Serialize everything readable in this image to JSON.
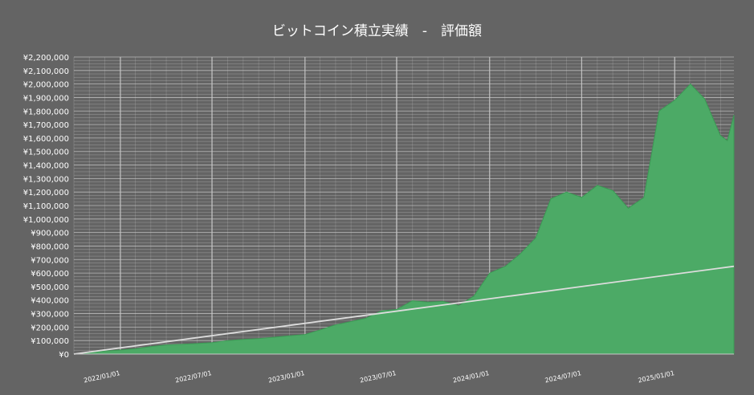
{
  "chart_data": {
    "type": "area",
    "title": "ビットコイン積立実績　-　評価額",
    "xlabel": "",
    "ylabel": "",
    "x_range": [
      "2021-10-01",
      "2025-04-28"
    ],
    "ylim": [
      0,
      2200000
    ],
    "y_tick_step": 100000,
    "y_tick_labels": [
      "¥0",
      "¥100,000",
      "¥200,000",
      "¥300,000",
      "¥400,000",
      "¥500,000",
      "¥600,000",
      "¥700,000",
      "¥800,000",
      "¥900,000",
      "¥1,000,000",
      "¥1,100,000",
      "¥1,200,000",
      "¥1,300,000",
      "¥1,400,000",
      "¥1,500,000",
      "¥1,600,000",
      "¥1,700,000",
      "¥1,800,000",
      "¥1,900,000",
      "¥2,000,000",
      "¥2,100,000",
      "¥2,200,000"
    ],
    "x_ticks": [
      {
        "date": "2022-01-01",
        "label": "2022/01/01"
      },
      {
        "date": "2022-07-01",
        "label": "2022/07/01"
      },
      {
        "date": "2023-01-01",
        "label": "2023/01/01"
      },
      {
        "date": "2023-07-01",
        "label": "2023/07/01"
      },
      {
        "date": "2024-01-01",
        "label": "2024/01/01"
      },
      {
        "date": "2024-07-01",
        "label": "2024/07/01"
      },
      {
        "date": "2025-01-01",
        "label": "2025/01/01"
      }
    ],
    "grid": true,
    "legend": "none",
    "colors": {
      "background": "#646464",
      "area": "#4caa66",
      "area_edge": "#3c9a55",
      "invested_line": "#dcdcdc",
      "grid": "#c8c8c8",
      "text": "#ffffff"
    },
    "series": [
      {
        "kind": "area",
        "points": [
          [
            "2021-10-01",
            0
          ],
          [
            "2021-11-01",
            12000
          ],
          [
            "2021-12-01",
            22000
          ],
          [
            "2022-01-01",
            30000
          ],
          [
            "2022-02-01",
            40000
          ],
          [
            "2022-03-01",
            55000
          ],
          [
            "2022-04-01",
            68000
          ],
          [
            "2022-05-01",
            72000
          ],
          [
            "2022-06-01",
            78000
          ],
          [
            "2022-07-01",
            85000
          ],
          [
            "2022-08-01",
            100000
          ],
          [
            "2022-09-01",
            108000
          ],
          [
            "2022-10-01",
            115000
          ],
          [
            "2022-11-01",
            125000
          ],
          [
            "2022-12-01",
            135000
          ],
          [
            "2023-01-01",
            145000
          ],
          [
            "2023-02-01",
            180000
          ],
          [
            "2023-03-01",
            215000
          ],
          [
            "2023-04-01",
            240000
          ],
          [
            "2023-05-01",
            265000
          ],
          [
            "2023-06-01",
            320000
          ],
          [
            "2023-07-01",
            330000
          ],
          [
            "2023-08-01",
            395000
          ],
          [
            "2023-09-01",
            385000
          ],
          [
            "2023-10-01",
            390000
          ],
          [
            "2023-11-01",
            360000
          ],
          [
            "2023-12-01",
            430000
          ],
          [
            "2024-01-01",
            600000
          ],
          [
            "2024-02-01",
            650000
          ],
          [
            "2024-03-01",
            740000
          ],
          [
            "2024-04-01",
            860000
          ],
          [
            "2024-05-01",
            1150000
          ],
          [
            "2024-06-01",
            1200000
          ],
          [
            "2024-07-01",
            1160000
          ],
          [
            "2024-08-01",
            1250000
          ],
          [
            "2024-09-01",
            1210000
          ],
          [
            "2024-10-01",
            1080000
          ],
          [
            "2024-11-01",
            1160000
          ],
          [
            "2024-12-01",
            1800000
          ],
          [
            "2025-01-01",
            1880000
          ],
          [
            "2025-02-01",
            2000000
          ],
          [
            "2025-03-01",
            1890000
          ],
          [
            "2025-04-01",
            1620000
          ],
          [
            "2025-04-15",
            1580000
          ],
          [
            "2025-04-28",
            1770000
          ]
        ]
      },
      {
        "kind": "line",
        "points": [
          [
            "2021-10-01",
            0
          ],
          [
            "2025-04-28",
            650000
          ]
        ]
      }
    ]
  }
}
